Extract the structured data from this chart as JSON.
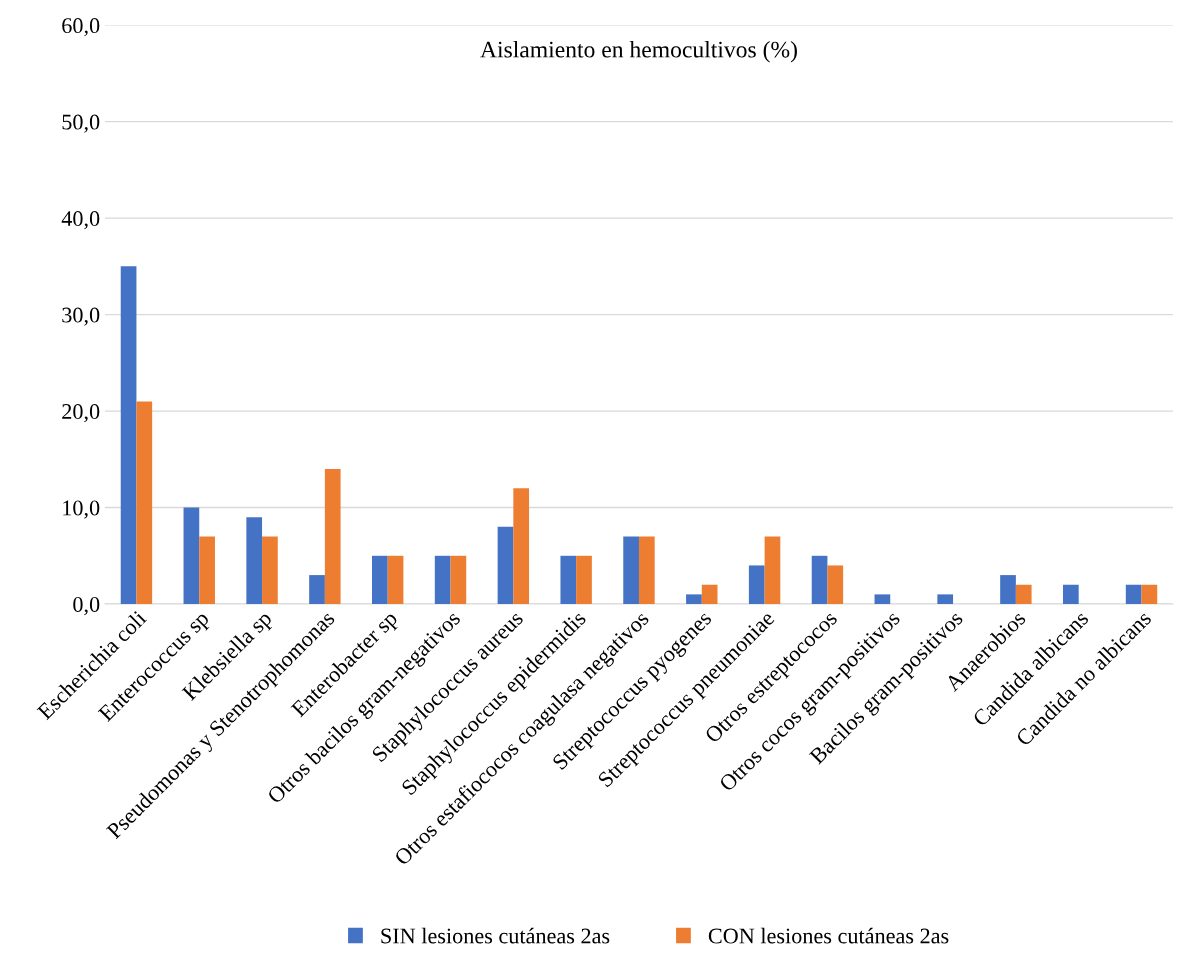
{
  "chart_data": {
    "type": "bar",
    "title": "Aislamiento en hemocultivos (%)",
    "categories": [
      "Escherichia coli",
      "Enterococcus sp",
      "Klebsiella sp",
      "Pseudomonas y Stenotrophomonas",
      "Enterobacter sp",
      "Otros bacilos gram-negativos",
      "Staphylococcus aureus",
      "Staphylococcus epidermidis",
      "Otros estafiococos coagulasa negativos",
      "Streptococcus pyogenes",
      "Streptococcus pneumoniae",
      "Otros estreptococos",
      "Otros cocos gram-positivos",
      "Bacilos gram-positivos",
      "Anaerobios",
      "Candida albicans",
      "Candida no albicans"
    ],
    "series": [
      {
        "name": "SIN lesiones cutáneas 2as",
        "color": "#4472c4",
        "values": [
          35,
          10,
          9,
          3,
          5,
          5,
          8,
          5,
          7,
          1,
          4,
          5,
          1,
          1,
          3,
          2,
          2
        ]
      },
      {
        "name": "CON lesiones cutáneas 2as",
        "color": "#ed7d31",
        "values": [
          21,
          7,
          7,
          14,
          5,
          5,
          12,
          5,
          7,
          2,
          7,
          4,
          0,
          0,
          2,
          0,
          2
        ]
      }
    ],
    "ylim": [
      0,
      60
    ],
    "yticks": [
      {
        "value": 0,
        "label": "0,0"
      },
      {
        "value": 10,
        "label": "10,0"
      },
      {
        "value": 20,
        "label": "20,0"
      },
      {
        "value": 30,
        "label": "30,0"
      },
      {
        "value": 40,
        "label": "40,0"
      },
      {
        "value": 50,
        "label": "50,0"
      },
      {
        "value": 60,
        "label": "60,0"
      }
    ],
    "grid": "y",
    "legend": "bottom"
  }
}
